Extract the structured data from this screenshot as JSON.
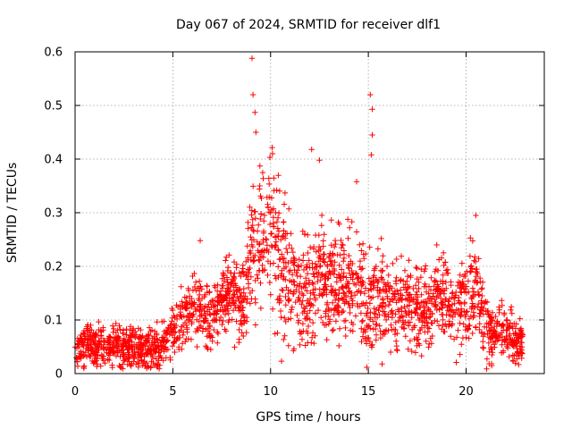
{
  "chart_data": {
    "type": "scatter",
    "title": "Day 067 of 2024, SRMTID for receiver dlf1",
    "xlabel": "GPS time / hours",
    "ylabel": "SRMTID / TECUs",
    "xlim": [
      0,
      24
    ],
    "ylim": [
      0,
      0.6
    ],
    "xticks": [
      0,
      5,
      10,
      15,
      20
    ],
    "xtick_labels": [
      "0",
      "5",
      "10",
      "15",
      "20"
    ],
    "yticks": [
      0,
      0.1,
      0.2,
      0.3,
      0.4,
      0.5,
      0.6
    ],
    "ytick_labels": [
      "0",
      "0.1",
      "0.2",
      "0.3",
      "0.4",
      "0.5",
      "0.6"
    ],
    "grid": true,
    "marker": "+",
    "color": "#ff0000",
    "series": [
      {
        "name": "SRMTID",
        "profile_x": [
          0,
          0.5,
          1,
          1.5,
          2,
          2.5,
          3,
          3.5,
          4,
          4.5,
          5,
          5.5,
          6,
          6.5,
          7,
          7.5,
          8,
          8.5,
          9,
          9.5,
          10,
          10.5,
          11,
          11.5,
          12,
          12.5,
          13,
          13.5,
          14,
          14.5,
          15,
          15.5,
          16,
          16.5,
          17,
          17.5,
          18,
          18.5,
          19,
          19.5,
          20,
          20.5,
          21,
          21.5,
          22,
          22.5,
          22.9
        ],
        "profile_y": [
          0.04,
          0.06,
          0.05,
          0.05,
          0.06,
          0.05,
          0.05,
          0.04,
          0.04,
          0.05,
          0.08,
          0.1,
          0.13,
          0.12,
          0.11,
          0.13,
          0.15,
          0.13,
          0.22,
          0.24,
          0.28,
          0.2,
          0.18,
          0.15,
          0.15,
          0.2,
          0.17,
          0.16,
          0.17,
          0.16,
          0.12,
          0.15,
          0.13,
          0.12,
          0.12,
          0.13,
          0.12,
          0.15,
          0.14,
          0.13,
          0.14,
          0.16,
          0.08,
          0.07,
          0.08,
          0.06,
          0.05
        ],
        "spread_x": [
          0,
          4.5,
          5.5,
          8.5,
          9,
          10.5,
          11,
          15.5,
          16,
          20.5,
          21,
          23
        ],
        "spread_y": [
          0.025,
          0.03,
          0.04,
          0.05,
          0.1,
          0.1,
          0.07,
          0.07,
          0.06,
          0.06,
          0.04,
          0.03
        ],
        "n_points": 2300,
        "peaks": [
          {
            "x": 9.05,
            "y": 0.588
          },
          {
            "x": 9.1,
            "y": 0.52
          },
          {
            "x": 9.2,
            "y": 0.487
          },
          {
            "x": 9.25,
            "y": 0.45
          },
          {
            "x": 10.1,
            "y": 0.41
          },
          {
            "x": 12.1,
            "y": 0.418
          },
          {
            "x": 12.5,
            "y": 0.398
          },
          {
            "x": 15.1,
            "y": 0.52
          },
          {
            "x": 15.2,
            "y": 0.493
          },
          {
            "x": 15.2,
            "y": 0.445
          },
          {
            "x": 15.15,
            "y": 0.408
          },
          {
            "x": 14.4,
            "y": 0.358
          },
          {
            "x": 6.4,
            "y": 0.248
          },
          {
            "x": 20.5,
            "y": 0.295
          },
          {
            "x": 18.5,
            "y": 0.24
          }
        ]
      }
    ]
  }
}
